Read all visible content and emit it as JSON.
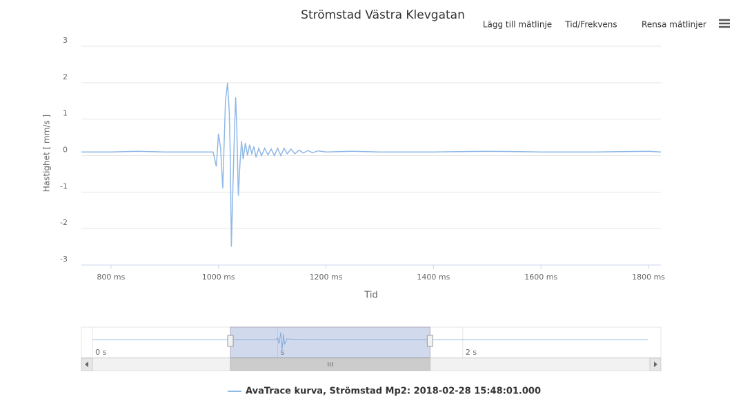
{
  "chart_data": {
    "type": "line",
    "title": "Strömstad Västra Klevgatan",
    "buttons": [
      "Lägg till mätlinje",
      "Tid/Frekvens",
      "Rensa mätlinjer"
    ],
    "xlabel": "Tid",
    "ylabel": "Hastighet [ mm/s ]",
    "xlim": [
      745,
      1823
    ],
    "ylim": [
      -3,
      3
    ],
    "xticks": [
      {
        "value": 800,
        "label": "800 ms"
      },
      {
        "value": 1000,
        "label": "1000 ms"
      },
      {
        "value": 1200,
        "label": "1200 ms"
      },
      {
        "value": 1400,
        "label": "1400 ms"
      },
      {
        "value": 1600,
        "label": "1600 ms"
      },
      {
        "value": 1800,
        "label": "1800 ms"
      }
    ],
    "yticks": [
      -3,
      -2,
      -1,
      0,
      1,
      2,
      3
    ],
    "grid": true,
    "series": [
      {
        "name": "AvaTrace kurva, Strömstad Mp2: 2018-02-28 15:48:01.000",
        "color": "#8fb9e6",
        "x": [
          745,
          800,
          850,
          900,
          950,
          990,
          996,
          1000,
          1004,
          1008,
          1013,
          1017,
          1020,
          1022,
          1024,
          1027,
          1030,
          1032,
          1034,
          1037,
          1040,
          1043,
          1046,
          1050,
          1054,
          1058,
          1062,
          1066,
          1070,
          1075,
          1080,
          1086,
          1092,
          1098,
          1104,
          1110,
          1116,
          1122,
          1128,
          1135,
          1142,
          1150,
          1158,
          1166,
          1175,
          1185,
          1200,
          1250,
          1300,
          1400,
          1500,
          1600,
          1700,
          1800,
          1823
        ],
        "values": [
          0.1,
          0.1,
          0.12,
          0.1,
          0.1,
          0.1,
          -0.3,
          0.6,
          0.2,
          -0.9,
          1.5,
          2.0,
          1.2,
          0.0,
          -2.5,
          -0.8,
          0.8,
          1.6,
          0.8,
          -1.1,
          -0.2,
          0.4,
          -0.1,
          0.35,
          0.0,
          0.3,
          0.05,
          0.25,
          -0.05,
          0.2,
          0.0,
          0.2,
          0.02,
          0.18,
          0.0,
          0.2,
          0.0,
          0.2,
          0.05,
          0.18,
          0.05,
          0.15,
          0.07,
          0.14,
          0.08,
          0.13,
          0.1,
          0.12,
          0.1,
          0.1,
          0.12,
          0.1,
          0.1,
          0.12,
          0.1
        ]
      }
    ],
    "navigator": {
      "xlim": [
        -60,
        3070
      ],
      "ylim": [
        -3,
        3
      ],
      "xticks": [
        {
          "value": 0,
          "label": "0 s"
        },
        {
          "value": 1000,
          "label": "s"
        },
        {
          "value": 2000,
          "label": "2 s"
        }
      ],
      "x": [
        0,
        990,
        1000,
        1008,
        1017,
        1024,
        1032,
        1037,
        1050,
        1100,
        1200,
        3000
      ],
      "values": [
        0.1,
        0.1,
        0.6,
        -0.9,
        2.0,
        -2.5,
        1.6,
        -1.1,
        0.35,
        0.2,
        0.1,
        0.1
      ]
    }
  }
}
